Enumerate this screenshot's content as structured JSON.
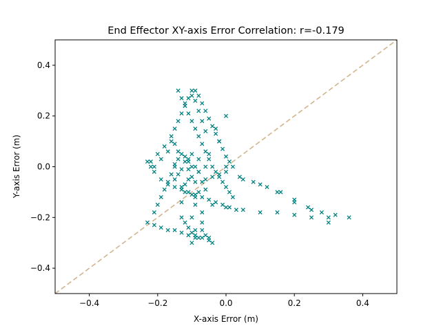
{
  "chart_data": {
    "type": "scatter",
    "title": "End Effector XY-axis Error Correlation: r=-0.179",
    "xlabel": "X-axis Error (m)",
    "ylabel": "Y-axis Error (m)",
    "xlim": [
      -0.5,
      0.5
    ],
    "ylim": [
      -0.5,
      0.5
    ],
    "xticks": [
      -0.4,
      -0.2,
      0.0,
      0.2,
      0.4
    ],
    "yticks": [
      -0.4,
      -0.2,
      0.0,
      0.2,
      0.4
    ],
    "xtick_labels": [
      "−0.4",
      "−0.2",
      "0.0",
      "0.2",
      "0.4"
    ],
    "ytick_labels": [
      "−0.4",
      "−0.2",
      "0.0",
      "0.2",
      "0.4"
    ],
    "grid": false,
    "legend": "none",
    "marker": "x",
    "colors": {
      "points": "#008080",
      "reference_line": "#d2b48c"
    },
    "reference_line": {
      "style": "dashed",
      "x": [
        -0.5,
        0.5
      ],
      "y": [
        -0.5,
        0.5
      ]
    },
    "series": [
      {
        "x": [
          -0.11,
          -0.08,
          -0.13,
          -0.09,
          -0.12,
          -0.1,
          -0.07,
          -0.14,
          -0.11,
          -0.09,
          -0.12,
          -0.1,
          -0.08,
          -0.13,
          -0.15,
          -0.06,
          -0.11,
          -0.1,
          -0.12,
          -0.09,
          -0.22,
          -0.2,
          -0.18,
          -0.16,
          -0.14,
          -0.12,
          -0.1,
          -0.08,
          -0.06,
          -0.04,
          -0.02,
          0.0,
          -0.21,
          -0.19,
          -0.17,
          -0.15,
          -0.13,
          -0.11,
          -0.14,
          -0.13,
          -0.12,
          -0.11,
          -0.1,
          -0.09,
          -0.08,
          -0.07,
          -0.06,
          -0.05,
          -0.04,
          -0.03,
          -0.02,
          -0.01,
          0.0,
          0.01,
          0.02,
          -0.15,
          -0.14,
          -0.13,
          -0.12,
          -0.11,
          -0.1,
          -0.09,
          -0.08,
          -0.07,
          -0.06,
          -0.16,
          -0.15,
          -0.12,
          -0.1,
          -0.09,
          -0.08,
          -0.07,
          -0.06,
          -0.05,
          -0.04,
          -0.03,
          -0.02,
          -0.01,
          0.0,
          0.01,
          0.02,
          0.0,
          0.04,
          0.08,
          0.12,
          0.16,
          0.2,
          0.24,
          0.28,
          0.32,
          0.36,
          0.05,
          0.1,
          0.15,
          0.2,
          0.25,
          0.3,
          -0.04,
          0.0,
          0.05,
          0.1,
          0.15,
          0.2,
          0.25,
          0.3,
          -0.23,
          -0.21,
          -0.19,
          -0.17,
          -0.15,
          -0.13,
          -0.11,
          -0.09,
          -0.07,
          -0.05,
          -0.21,
          -0.2,
          -0.19,
          -0.18,
          -0.17,
          -0.16,
          -0.15,
          -0.14,
          -0.13,
          -0.23,
          -0.22,
          -0.21,
          -0.19,
          -0.17,
          -0.15,
          -0.13,
          -0.11,
          -0.09,
          -0.07,
          -0.05,
          -0.03,
          -0.01,
          0.01,
          0.03,
          -0.13,
          -0.12,
          -0.11,
          -0.1,
          -0.09,
          -0.07,
          -0.06,
          -0.05,
          -0.04,
          -0.1,
          -0.1,
          -0.09,
          -0.09,
          -0.08,
          -0.08,
          -0.07,
          -0.07,
          -0.06,
          -0.05,
          -0.02,
          0.0,
          -0.03
        ],
        "y": [
          -0.05,
          -0.02,
          -0.08,
          0.0,
          -0.1,
          -0.04,
          -0.06,
          -0.03,
          0.02,
          -0.12,
          -0.07,
          0.05,
          0.03,
          -0.14,
          -0.05,
          -0.09,
          -0.01,
          -0.11,
          0.04,
          -0.06,
          0.02,
          0.05,
          0.08,
          0.1,
          0.06,
          0.02,
          0.0,
          -0.02,
          -0.05,
          -0.04,
          -0.03,
          0.0,
          0.0,
          0.03,
          0.06,
          0.01,
          -0.01,
          0.03,
          0.3,
          0.27,
          0.24,
          0.21,
          0.18,
          0.15,
          0.12,
          0.09,
          0.06,
          0.03,
          0.0,
          -0.02,
          -0.04,
          -0.06,
          -0.08,
          -0.1,
          -0.12,
          0.15,
          0.18,
          0.21,
          0.24,
          0.27,
          0.3,
          0.26,
          0.22,
          0.18,
          0.14,
          0.12,
          0.09,
          0.25,
          0.28,
          0.3,
          0.28,
          0.25,
          0.22,
          0.19,
          0.16,
          0.13,
          0.1,
          0.07,
          0.04,
          0.02,
          0.0,
          -0.02,
          -0.04,
          -0.06,
          -0.08,
          -0.1,
          -0.13,
          -0.16,
          -0.18,
          -0.19,
          -0.2,
          -0.05,
          -0.07,
          -0.1,
          -0.14,
          -0.17,
          -0.2,
          -0.15,
          -0.16,
          -0.17,
          -0.18,
          -0.18,
          -0.19,
          -0.2,
          -0.22,
          -0.22,
          -0.23,
          -0.24,
          -0.25,
          -0.25,
          -0.26,
          -0.27,
          -0.27,
          -0.28,
          -0.28,
          -0.18,
          -0.15,
          -0.12,
          -0.09,
          -0.06,
          -0.03,
          0.0,
          0.03,
          0.05,
          0.02,
          0.0,
          -0.02,
          -0.05,
          -0.07,
          -0.08,
          -0.09,
          -0.1,
          -0.11,
          -0.12,
          -0.13,
          -0.14,
          -0.15,
          -0.16,
          -0.17,
          -0.2,
          -0.22,
          -0.24,
          -0.26,
          -0.28,
          -0.25,
          -0.27,
          -0.29,
          -0.3,
          -0.3,
          -0.2,
          -0.25,
          -0.15,
          -0.1,
          -0.28,
          -0.22,
          -0.18,
          0.0,
          0.05,
          0.1,
          0.2,
          0.15
        ]
      }
    ]
  }
}
